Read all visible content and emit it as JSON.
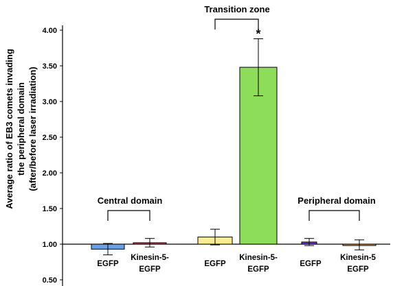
{
  "chart_data": {
    "type": "bar",
    "ylabel": [
      "Average ratio of EB3 comets invading",
      "the peripheral domain",
      "(after/before laser irradiation)"
    ],
    "ylim": [
      0.5,
      4.1
    ],
    "yticks": [
      "4.00",
      "3.50",
      "3.00",
      "2.50",
      "2.00",
      "1.50",
      "1.00",
      "0.50"
    ],
    "yticks_values": [
      4.0,
      3.5,
      3.0,
      2.5,
      2.0,
      1.5,
      1.0,
      0.5
    ],
    "baseline": 1.0,
    "bars": [
      {
        "category": [
          "EGFP"
        ],
        "value": 0.93,
        "error": 0.08,
        "color": "#6aa0ea"
      },
      {
        "category": [
          "Kinesin-5-",
          "EGFP"
        ],
        "value": 1.02,
        "error": 0.06,
        "color": "#d14646"
      },
      {
        "category": [
          "EGFP"
        ],
        "value": 1.1,
        "error": 0.11,
        "color": "#f8ee8c"
      },
      {
        "category": [
          "Kinesin-5-",
          "EGFP"
        ],
        "value": 3.48,
        "error": 0.4,
        "color": "#8ddc5a"
      },
      {
        "category": [
          "EGFP"
        ],
        "value": 1.03,
        "error": 0.05,
        "color": "#6a33d8"
      },
      {
        "category": [
          "Kinesin-5",
          "EGFP"
        ],
        "value": 0.99,
        "error": 0.07,
        "color": "#e6a256"
      }
    ],
    "groups": [
      {
        "label": "Central domain",
        "bars": [
          0,
          1
        ]
      },
      {
        "label": "Transition zone",
        "bars": [
          2,
          3
        ]
      },
      {
        "label": "Peripheral domain",
        "bars": [
          4,
          5
        ]
      }
    ],
    "annotations": [
      {
        "text": "*",
        "bar": 3
      }
    ]
  }
}
